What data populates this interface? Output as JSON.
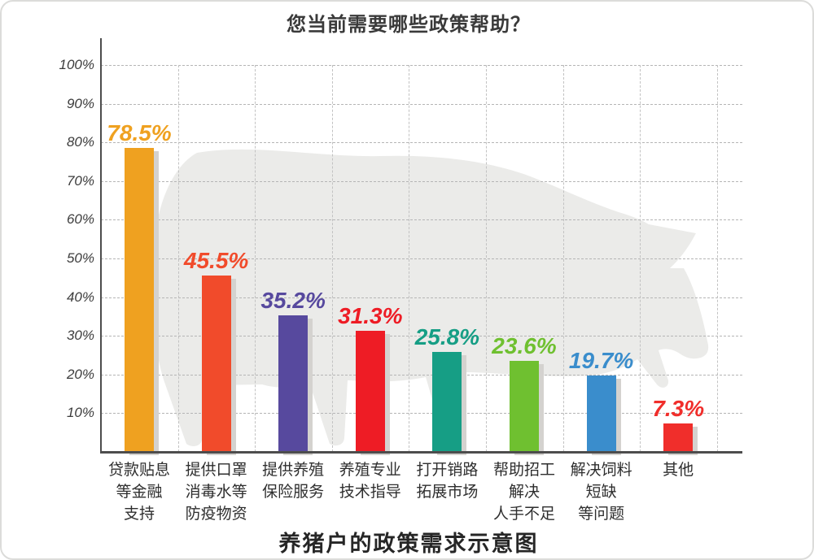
{
  "card": {
    "top_title": "您当前需要哪些政策帮助？",
    "bottom_title": "养猪户的政策需求示意图"
  },
  "chart_data": {
    "type": "bar",
    "title": "您当前需要哪些政策帮助？",
    "caption": "养猪户的政策需求示意图",
    "xlabel": "",
    "ylabel": "",
    "ylim": [
      0,
      105
    ],
    "y_ticks": [
      "10%",
      "20%",
      "30%",
      "40%",
      "50%",
      "60%",
      "70%",
      "80%",
      "90%",
      "100%"
    ],
    "grid": "dashed-both-axes",
    "legend": "none",
    "watermark": "pig-silhouette",
    "categories": [
      [
        "贷款贴息",
        "等金融",
        "支持"
      ],
      [
        "提供口罩",
        "消毒水等",
        "防疫物资"
      ],
      [
        "提供养殖",
        "保险服务"
      ],
      [
        "养殖专业",
        "技术指导"
      ],
      [
        "打开销路",
        "拓展市场"
      ],
      [
        "帮助招工",
        "解决",
        "人手不足"
      ],
      [
        "解决饲料",
        "短缺",
        "等问题"
      ],
      [
        "其他"
      ]
    ],
    "values": [
      78.5,
      45.5,
      35.2,
      31.3,
      25.8,
      23.6,
      19.7,
      7.3
    ],
    "value_labels": [
      "78.5%",
      "45.5%",
      "35.2%",
      "31.3%",
      "25.8%",
      "23.6%",
      "19.7%",
      "7.3%"
    ],
    "colors": [
      "#efa120",
      "#f14b2b",
      "#57499e",
      "#ee1c25",
      "#169e85",
      "#6fc030",
      "#3a8dcc",
      "#f02e2b"
    ],
    "axis_color": "#4d4d4d",
    "grid_color": "#b5b5b5",
    "tick_color": "#3c3c3c",
    "bar_shadow_color": "#d4d2cf",
    "watermark_color": "#ebebe9"
  }
}
